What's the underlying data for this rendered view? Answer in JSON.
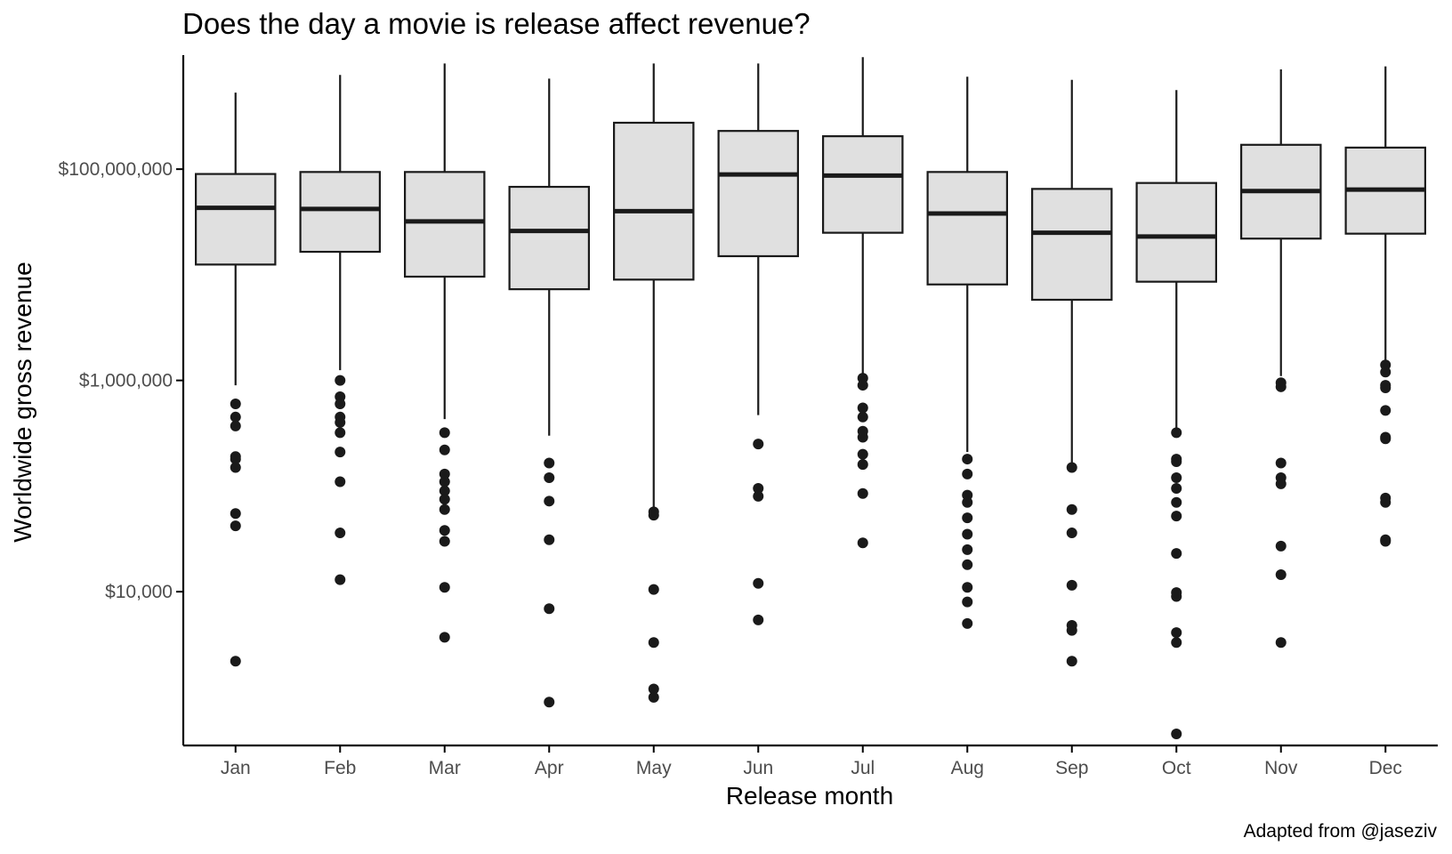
{
  "chart_data": {
    "type": "box",
    "title": "Does the day a movie is release affect revenue?",
    "xlabel": "Release month",
    "ylabel": "Worldwide gross revenue",
    "caption": "Adapted from @jaseziv",
    "y_scale": "log10",
    "ylim": [
      350,
      1200000000
    ],
    "y_ticks": [
      {
        "value": 10000,
        "label": "$10,000"
      },
      {
        "value": 1000000,
        "label": "$1,000,000"
      },
      {
        "value": 100000000,
        "label": "$100,000,000"
      }
    ],
    "grid": false,
    "categories": [
      "Jan",
      "Feb",
      "Mar",
      "Apr",
      "May",
      "Jun",
      "Jul",
      "Aug",
      "Sep",
      "Oct",
      "Nov",
      "Dec"
    ],
    "boxes": [
      {
        "month": "Jan",
        "whisker_low": 900000,
        "q1": 12500000,
        "median": 43000000,
        "q3": 90000000,
        "whisker_high": 530000000,
        "outliers": [
          600000,
          450000,
          370000,
          190000,
          180000,
          150000,
          55000,
          42000,
          2200
        ]
      },
      {
        "month": "Feb",
        "whisker_low": 1250000,
        "q1": 16500000,
        "median": 42000000,
        "q3": 94000000,
        "whisker_high": 780000000,
        "outliers": [
          1000000,
          700000,
          600000,
          450000,
          400000,
          320000,
          210000,
          110000,
          36000,
          13000
        ]
      },
      {
        "month": "Mar",
        "whisker_low": 430000,
        "q1": 9600000,
        "median": 32000000,
        "q3": 94000000,
        "whisker_high": 1000000000,
        "outliers": [
          320000,
          220000,
          130000,
          110000,
          90000,
          75000,
          60000,
          38000,
          30000,
          11000,
          3700
        ]
      },
      {
        "month": "Apr",
        "whisker_low": 300000,
        "q1": 7300000,
        "median": 26000000,
        "q3": 68000000,
        "whisker_high": 720000000,
        "outliers": [
          165000,
          120000,
          72000,
          31000,
          6900,
          900
        ]
      },
      {
        "month": "May",
        "whisker_low": 57000,
        "q1": 9000000,
        "median": 40000000,
        "q3": 275000000,
        "whisker_high": 1000000000,
        "outliers": [
          57000,
          53000,
          10500,
          3300,
          1200,
          1000
        ]
      },
      {
        "month": "Jun",
        "whisker_low": 470000,
        "q1": 15000000,
        "median": 89000000,
        "q3": 230000000,
        "whisker_high": 1000000000,
        "outliers": [
          250000,
          95000,
          80000,
          12000,
          5400
        ]
      },
      {
        "month": "Jul",
        "whisker_low": 1100000,
        "q1": 25000000,
        "median": 87000000,
        "q3": 205000000,
        "whisker_high": 1150000000,
        "outliers": [
          1050000,
          900000,
          550000,
          450000,
          330000,
          290000,
          200000,
          160000,
          85000,
          29000
        ]
      },
      {
        "month": "Aug",
        "whisker_low": 210000,
        "q1": 8100000,
        "median": 38000000,
        "q3": 94000000,
        "whisker_high": 750000000,
        "outliers": [
          180000,
          130000,
          82000,
          70000,
          50000,
          35000,
          25000,
          18000,
          11000,
          8000,
          5000
        ]
      },
      {
        "month": "Sep",
        "whisker_low": 150000,
        "q1": 5800000,
        "median": 25000000,
        "q3": 65000000,
        "whisker_high": 700000000,
        "outliers": [
          150000,
          60000,
          36000,
          11500,
          4800,
          4300,
          2200
        ]
      },
      {
        "month": "Oct",
        "whisker_low": 320000,
        "q1": 8600000,
        "median": 23000000,
        "q3": 74000000,
        "whisker_high": 560000000,
        "outliers": [
          320000,
          180000,
          170000,
          120000,
          95000,
          70000,
          52000,
          23000,
          9800,
          9000,
          4100,
          3300,
          450
        ]
      },
      {
        "month": "Nov",
        "whisker_low": 1100000,
        "q1": 22000000,
        "median": 62000000,
        "q3": 170000000,
        "whisker_high": 880000000,
        "outliers": [
          950000,
          870000,
          165000,
          120000,
          105000,
          27000,
          14500,
          3300
        ]
      },
      {
        "month": "Dec",
        "whisker_low": 1500000,
        "q1": 24500000,
        "median": 64000000,
        "q3": 160000000,
        "whisker_high": 940000000,
        "outliers": [
          1400000,
          1200000,
          900000,
          850000,
          520000,
          290000,
          280000,
          77000,
          70000,
          31000,
          30000
        ]
      }
    ]
  },
  "colors": {
    "box_fill": "#e0e0e0",
    "box_stroke": "#1a1a1a",
    "point": "#1a1a1a",
    "axis": "#000000",
    "tick_label": "#4d4d4d"
  }
}
